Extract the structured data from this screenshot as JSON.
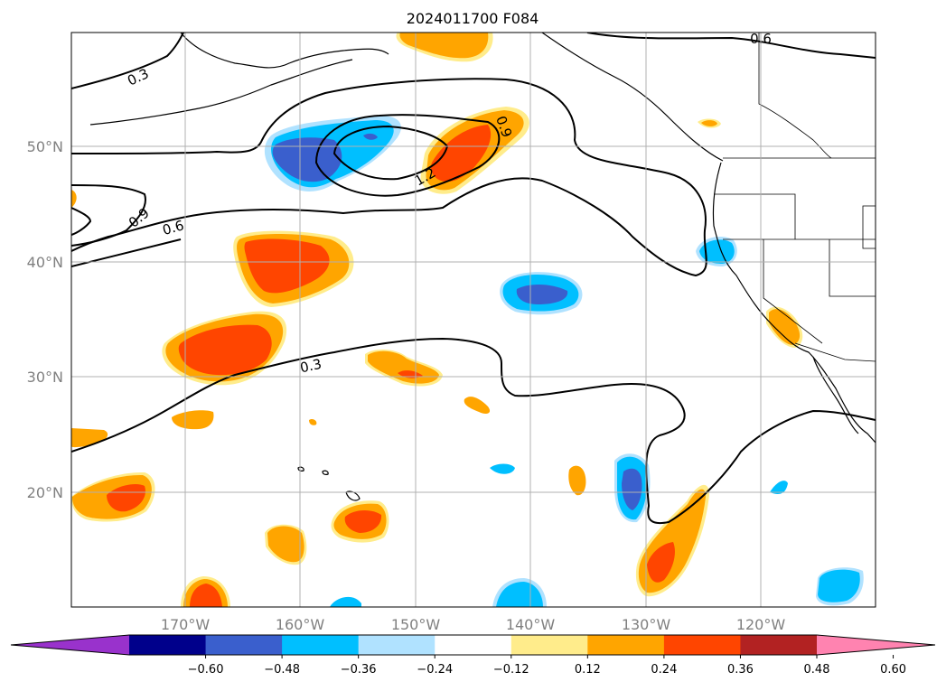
{
  "title": "2024011700 F084",
  "map": {
    "lat_labels": [
      "50°N",
      "40°N",
      "30°N",
      "20°N"
    ],
    "lon_labels": [
      "170°W",
      "160°W",
      "150°W",
      "140°W",
      "130°W",
      "120°W"
    ],
    "grid": true,
    "contour_labels": [
      "0.3",
      "0.6",
      "0.9",
      "1.2",
      "0.9",
      "0.6",
      "0.3"
    ]
  },
  "colorbar": {
    "ticks": [
      "−0.60",
      "−0.48",
      "−0.36",
      "−0.24",
      "−0.12",
      "0.12",
      "0.24",
      "0.36",
      "0.48",
      "0.60"
    ],
    "colors": [
      "#9932cc",
      "#00008b",
      "#3a5fcd",
      "#00bfff",
      "#b0e2ff",
      "#ffffff",
      "#ffec8b",
      "#ffa500",
      "#ff4500",
      "#b22222",
      "#ff83b0"
    ],
    "extend": "both"
  }
}
